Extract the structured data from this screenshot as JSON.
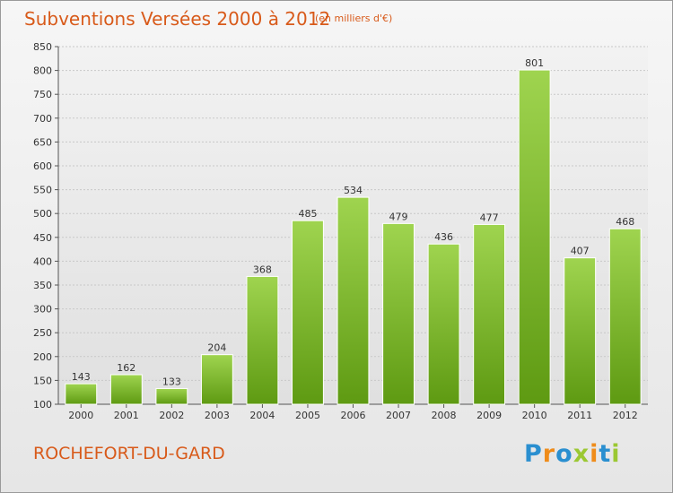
{
  "title": "Subventions Versées 2000 à 2012",
  "subtitle": "(en milliers d'€)",
  "footer": {
    "commune": "ROCHEFORT-DU-GARD"
  },
  "logo": {
    "text": "Proxiti",
    "letters": [
      "P",
      "r",
      "o",
      "x",
      "i",
      "t",
      "i"
    ],
    "colors": [
      "#2a8fd0",
      "#ef8c1a",
      "#2a8fd0",
      "#9bc832",
      "#ef8c1a",
      "#2a8fd0",
      "#9bc832"
    ]
  },
  "colors": {
    "bar_top": "#9fd44f",
    "bar_bottom": "#5e9a12",
    "title": "#d85a1a",
    "grid": "#c8c8c8"
  },
  "chart_data": {
    "type": "bar",
    "title": "Subventions Versées 2000 à 2012",
    "categories": [
      "2000",
      "2001",
      "2002",
      "2003",
      "2004",
      "2005",
      "2006",
      "2007",
      "2008",
      "2009",
      "2010",
      "2011",
      "2012"
    ],
    "values": [
      143,
      162,
      133,
      204,
      368,
      485,
      534,
      479,
      436,
      477,
      801,
      407,
      468
    ],
    "ylim": [
      100,
      850
    ],
    "yticks": [
      100,
      150,
      200,
      250,
      300,
      350,
      400,
      450,
      500,
      550,
      600,
      650,
      700,
      750,
      800,
      850
    ],
    "grid": "horizontal"
  }
}
